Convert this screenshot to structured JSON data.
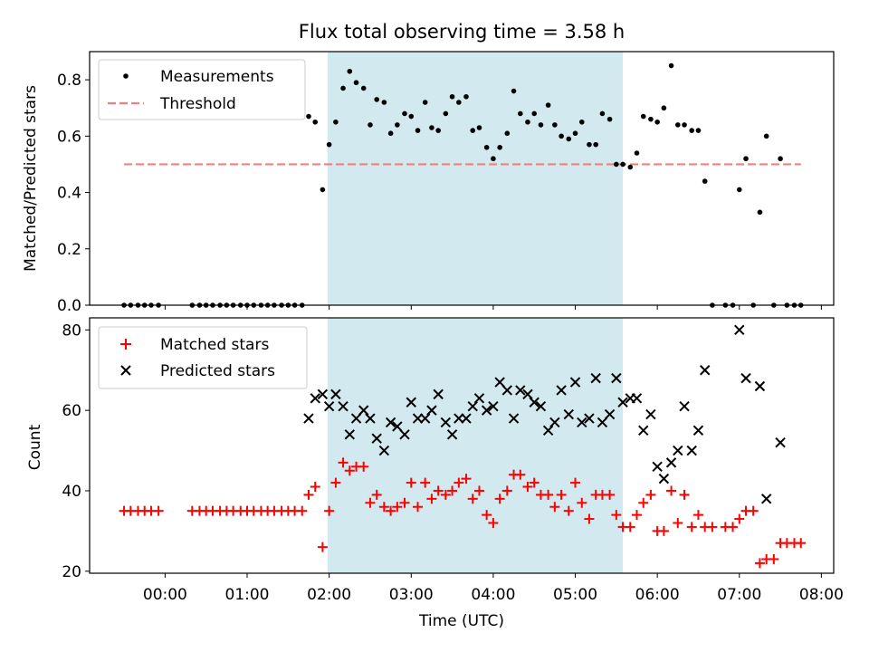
{
  "chart_data": [
    {
      "type": "scatter",
      "title": "Flux total observing time = 3.58 h",
      "ylabel": "Matched/Predicted stars",
      "xlabel": "",
      "xlim": [
        -0.92,
        8.15
      ],
      "ylim": [
        0,
        0.9
      ],
      "yticks": [
        0.0,
        0.2,
        0.4,
        0.6,
        0.8
      ],
      "ytick_labels": [
        "0.0",
        "0.2",
        "0.4",
        "0.6",
        "0.8"
      ],
      "legend_position": "top-left",
      "grid": false,
      "shaded_region": {
        "x_start": 1.98,
        "x_end": 5.58,
        "color": "#d3e9f0"
      },
      "threshold": {
        "name": "Threshold",
        "y": 0.5,
        "x_start": -0.5,
        "x_end": 7.75,
        "color": "#f08080"
      },
      "series": [
        {
          "name": "Measurements",
          "color": "#000000",
          "points": [
            [
              -0.5,
              0
            ],
            [
              -0.42,
              0
            ],
            [
              -0.33,
              0
            ],
            [
              -0.25,
              0
            ],
            [
              -0.17,
              0
            ],
            [
              -0.08,
              0
            ],
            [
              0.33,
              0
            ],
            [
              0.42,
              0
            ],
            [
              0.5,
              0
            ],
            [
              0.58,
              0
            ],
            [
              0.67,
              0
            ],
            [
              0.75,
              0
            ],
            [
              0.83,
              0
            ],
            [
              0.92,
              0
            ],
            [
              1.0,
              0
            ],
            [
              1.08,
              0
            ],
            [
              1.17,
              0
            ],
            [
              1.25,
              0
            ],
            [
              1.33,
              0
            ],
            [
              1.42,
              0
            ],
            [
              1.5,
              0
            ],
            [
              1.58,
              0
            ],
            [
              1.67,
              0
            ],
            [
              1.75,
              0.67
            ],
            [
              1.83,
              0.65
            ],
            [
              1.92,
              0.41
            ],
            [
              2.0,
              0.57
            ],
            [
              2.08,
              0.65
            ],
            [
              2.17,
              0.77
            ],
            [
              2.25,
              0.83
            ],
            [
              2.33,
              0.79
            ],
            [
              2.42,
              0.77
            ],
            [
              2.5,
              0.64
            ],
            [
              2.58,
              0.73
            ],
            [
              2.67,
              0.72
            ],
            [
              2.75,
              0.61
            ],
            [
              2.83,
              0.64
            ],
            [
              2.92,
              0.68
            ],
            [
              3.0,
              0.67
            ],
            [
              3.08,
              0.62
            ],
            [
              3.17,
              0.72
            ],
            [
              3.25,
              0.63
            ],
            [
              3.33,
              0.62
            ],
            [
              3.42,
              0.68
            ],
            [
              3.5,
              0.74
            ],
            [
              3.58,
              0.72
            ],
            [
              3.67,
              0.74
            ],
            [
              3.75,
              0.62
            ],
            [
              3.83,
              0.63
            ],
            [
              3.92,
              0.56
            ],
            [
              4.0,
              0.52
            ],
            [
              4.08,
              0.56
            ],
            [
              4.17,
              0.61
            ],
            [
              4.25,
              0.76
            ],
            [
              4.33,
              0.68
            ],
            [
              4.42,
              0.65
            ],
            [
              4.5,
              0.68
            ],
            [
              4.58,
              0.64
            ],
            [
              4.67,
              0.71
            ],
            [
              4.75,
              0.64
            ],
            [
              4.83,
              0.6
            ],
            [
              4.92,
              0.59
            ],
            [
              5.0,
              0.61
            ],
            [
              5.08,
              0.65
            ],
            [
              5.17,
              0.57
            ],
            [
              5.25,
              0.57
            ],
            [
              5.33,
              0.68
            ],
            [
              5.42,
              0.66
            ],
            [
              5.5,
              0.5
            ],
            [
              5.58,
              0.5
            ],
            [
              5.67,
              0.49
            ],
            [
              5.75,
              0.54
            ],
            [
              5.83,
              0.67
            ],
            [
              5.92,
              0.66
            ],
            [
              6.0,
              0.65
            ],
            [
              6.08,
              0.7
            ],
            [
              6.17,
              0.85
            ],
            [
              6.25,
              0.64
            ],
            [
              6.33,
              0.64
            ],
            [
              6.42,
              0.62
            ],
            [
              6.5,
              0.62
            ],
            [
              6.58,
              0.44
            ],
            [
              6.67,
              0
            ],
            [
              6.83,
              0
            ],
            [
              6.92,
              0
            ],
            [
              7.0,
              0.41
            ],
            [
              7.08,
              0.52
            ],
            [
              7.17,
              0
            ],
            [
              7.25,
              0.33
            ],
            [
              7.33,
              0.6
            ],
            [
              7.42,
              0
            ],
            [
              7.5,
              0.52
            ],
            [
              7.58,
              0
            ],
            [
              7.67,
              0
            ],
            [
              7.75,
              0
            ]
          ]
        }
      ]
    },
    {
      "type": "scatter",
      "title": "",
      "xlabel": "Time (UTC)",
      "ylabel": "Count",
      "xlim": [
        -0.92,
        8.15
      ],
      "ylim": [
        19.5,
        83
      ],
      "xticks": [
        0,
        1,
        2,
        3,
        4,
        5,
        6,
        7,
        8
      ],
      "xtick_labels": [
        "00:00",
        "01:00",
        "02:00",
        "03:00",
        "04:00",
        "05:00",
        "06:00",
        "07:00",
        "08:00"
      ],
      "yticks": [
        20,
        40,
        60,
        80
      ],
      "ytick_labels": [
        "20",
        "40",
        "60",
        "80"
      ],
      "legend_position": "top-left",
      "grid": false,
      "shaded_region": {
        "x_start": 1.98,
        "x_end": 5.58,
        "color": "#d3e9f0"
      },
      "series": [
        {
          "name": "Matched stars",
          "marker": "plus",
          "color": "#ff0000",
          "points": [
            [
              -0.5,
              35
            ],
            [
              -0.42,
              35
            ],
            [
              -0.33,
              35
            ],
            [
              -0.25,
              35
            ],
            [
              -0.17,
              35
            ],
            [
              -0.08,
              35
            ],
            [
              0.33,
              35
            ],
            [
              0.42,
              35
            ],
            [
              0.5,
              35
            ],
            [
              0.58,
              35
            ],
            [
              0.67,
              35
            ],
            [
              0.75,
              35
            ],
            [
              0.83,
              35
            ],
            [
              0.92,
              35
            ],
            [
              1.0,
              35
            ],
            [
              1.08,
              35
            ],
            [
              1.17,
              35
            ],
            [
              1.25,
              35
            ],
            [
              1.33,
              35
            ],
            [
              1.42,
              35
            ],
            [
              1.5,
              35
            ],
            [
              1.58,
              35
            ],
            [
              1.67,
              35
            ],
            [
              1.75,
              39
            ],
            [
              1.83,
              41
            ],
            [
              1.92,
              26
            ],
            [
              2.0,
              35
            ],
            [
              2.08,
              42
            ],
            [
              2.17,
              47
            ],
            [
              2.25,
              45
            ],
            [
              2.33,
              46
            ],
            [
              2.42,
              46
            ],
            [
              2.5,
              37
            ],
            [
              2.58,
              39
            ],
            [
              2.67,
              36
            ],
            [
              2.75,
              35
            ],
            [
              2.83,
              36
            ],
            [
              2.92,
              37
            ],
            [
              3.0,
              42
            ],
            [
              3.08,
              36
            ],
            [
              3.17,
              42
            ],
            [
              3.25,
              38
            ],
            [
              3.33,
              40
            ],
            [
              3.42,
              39
            ],
            [
              3.5,
              40
            ],
            [
              3.58,
              42
            ],
            [
              3.67,
              43
            ],
            [
              3.75,
              38
            ],
            [
              3.83,
              40
            ],
            [
              3.92,
              34
            ],
            [
              4.0,
              32
            ],
            [
              4.08,
              38
            ],
            [
              4.17,
              40
            ],
            [
              4.25,
              44
            ],
            [
              4.33,
              44
            ],
            [
              4.42,
              41
            ],
            [
              4.5,
              42
            ],
            [
              4.58,
              39
            ],
            [
              4.67,
              39
            ],
            [
              4.75,
              36
            ],
            [
              4.83,
              39
            ],
            [
              4.92,
              35
            ],
            [
              5.0,
              42
            ],
            [
              5.08,
              37
            ],
            [
              5.17,
              33
            ],
            [
              5.25,
              39
            ],
            [
              5.33,
              39
            ],
            [
              5.42,
              39
            ],
            [
              5.5,
              34
            ],
            [
              5.58,
              31
            ],
            [
              5.67,
              31
            ],
            [
              5.75,
              34
            ],
            [
              5.83,
              37
            ],
            [
              5.92,
              39
            ],
            [
              6.0,
              30
            ],
            [
              6.08,
              30
            ],
            [
              6.17,
              40
            ],
            [
              6.25,
              32
            ],
            [
              6.33,
              39
            ],
            [
              6.42,
              31
            ],
            [
              6.5,
              34
            ],
            [
              6.58,
              31
            ],
            [
              6.67,
              31
            ],
            [
              6.83,
              31
            ],
            [
              6.92,
              31
            ],
            [
              7.0,
              33
            ],
            [
              7.08,
              35
            ],
            [
              7.17,
              35
            ],
            [
              7.25,
              22
            ],
            [
              7.33,
              23
            ],
            [
              7.42,
              23
            ],
            [
              7.5,
              27
            ],
            [
              7.58,
              27
            ],
            [
              7.67,
              27
            ],
            [
              7.75,
              27
            ]
          ]
        },
        {
          "name": "Predicted stars",
          "marker": "x",
          "color": "#000000",
          "points": [
            [
              1.75,
              58
            ],
            [
              1.83,
              63
            ],
            [
              1.92,
              64
            ],
            [
              2.0,
              61
            ],
            [
              2.08,
              64
            ],
            [
              2.17,
              61
            ],
            [
              2.25,
              54
            ],
            [
              2.33,
              58
            ],
            [
              2.42,
              60
            ],
            [
              2.5,
              58
            ],
            [
              2.58,
              53
            ],
            [
              2.67,
              50
            ],
            [
              2.75,
              57
            ],
            [
              2.83,
              56
            ],
            [
              2.92,
              54
            ],
            [
              3.0,
              62
            ],
            [
              3.08,
              58
            ],
            [
              3.17,
              58
            ],
            [
              3.25,
              60
            ],
            [
              3.33,
              64
            ],
            [
              3.42,
              57
            ],
            [
              3.5,
              54
            ],
            [
              3.58,
              58
            ],
            [
              3.67,
              58
            ],
            [
              3.75,
              61
            ],
            [
              3.83,
              63
            ],
            [
              3.92,
              60
            ],
            [
              4.0,
              61
            ],
            [
              4.08,
              67
            ],
            [
              4.17,
              65
            ],
            [
              4.25,
              58
            ],
            [
              4.33,
              65
            ],
            [
              4.42,
              64
            ],
            [
              4.5,
              62
            ],
            [
              4.58,
              61
            ],
            [
              4.67,
              55
            ],
            [
              4.75,
              57
            ],
            [
              4.83,
              65
            ],
            [
              4.92,
              59
            ],
            [
              5.0,
              67
            ],
            [
              5.08,
              57
            ],
            [
              5.17,
              58
            ],
            [
              5.25,
              68
            ],
            [
              5.33,
              57
            ],
            [
              5.42,
              59
            ],
            [
              5.5,
              68
            ],
            [
              5.58,
              62
            ],
            [
              5.67,
              63
            ],
            [
              5.75,
              63
            ],
            [
              5.83,
              55
            ],
            [
              5.92,
              59
            ],
            [
              6.0,
              46
            ],
            [
              6.08,
              43
            ],
            [
              6.17,
              47
            ],
            [
              6.25,
              50
            ],
            [
              6.33,
              61
            ],
            [
              6.42,
              50
            ],
            [
              6.5,
              55
            ],
            [
              6.58,
              70
            ],
            [
              7.0,
              80
            ],
            [
              7.08,
              68
            ],
            [
              7.25,
              66
            ],
            [
              7.33,
              38
            ],
            [
              7.5,
              52
            ]
          ]
        }
      ]
    }
  ]
}
